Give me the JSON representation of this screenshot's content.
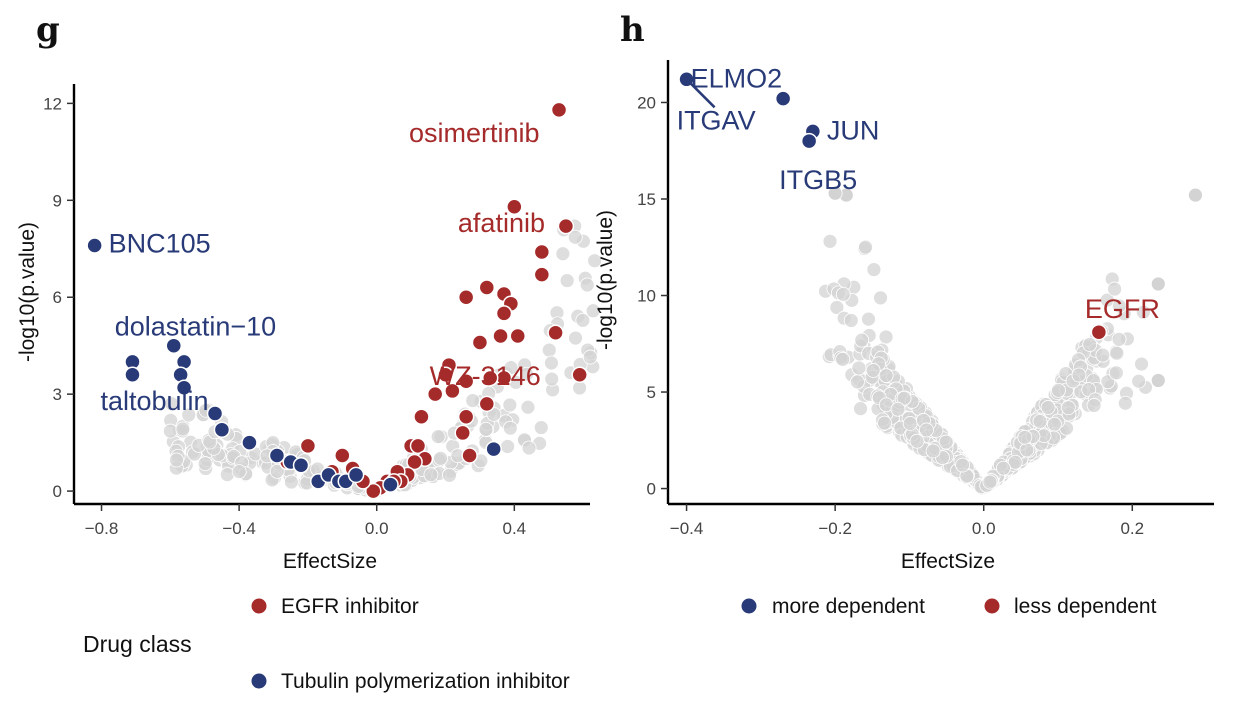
{
  "panels": {
    "g": "g",
    "h": "h"
  },
  "legend_g": {
    "title": "Drug class",
    "items": [
      {
        "label": "EGFR inhibitor",
        "color": "#a52a2a"
      },
      {
        "label": "Tubulin polymerization inhibitor",
        "color": "#283a77"
      }
    ]
  },
  "legend_h": {
    "items": [
      {
        "label": "more dependent",
        "color": "#283a77"
      },
      {
        "label": "less dependent",
        "color": "#a52a2a"
      }
    ]
  },
  "colors": {
    "red": "#a52a2a",
    "blue": "#283a77",
    "grey": "#d3d3d3"
  },
  "chart_data": [
    {
      "type": "scatter",
      "xlabel": "EffectSize",
      "ylabel": "-log10(p.value)",
      "xlim": [
        -0.88,
        0.62
      ],
      "ylim": [
        -0.4,
        12.6
      ],
      "xticks": [
        -0.8,
        -0.4,
        0.0,
        0.4
      ],
      "xtick_labels": [
        "−0.8",
        "−0.4",
        "0.0",
        "0.4"
      ],
      "yticks": [
        0,
        3,
        6,
        9,
        12
      ],
      "grid": false,
      "legend": "bottom",
      "series": [
        {
          "name": "EGFR inhibitor",
          "color": "#a52a2a",
          "points": [
            [
              0.53,
              11.8
            ],
            [
              0.4,
              8.8
            ],
            [
              0.55,
              8.2
            ],
            [
              0.48,
              7.4
            ],
            [
              0.48,
              6.7
            ],
            [
              0.32,
              6.3
            ],
            [
              0.37,
              6.1
            ],
            [
              0.26,
              6.0
            ],
            [
              0.39,
              5.8
            ],
            [
              0.37,
              5.5
            ],
            [
              0.52,
              4.9
            ],
            [
              0.41,
              4.8
            ],
            [
              0.36,
              4.8
            ],
            [
              0.3,
              4.6
            ],
            [
              0.21,
              3.9
            ],
            [
              0.2,
              3.6
            ],
            [
              0.37,
              3.5
            ],
            [
              0.26,
              3.4
            ],
            [
              0.33,
              3.5
            ],
            [
              0.59,
              3.6
            ],
            [
              0.17,
              3.0
            ],
            [
              0.22,
              3.1
            ],
            [
              0.32,
              2.7
            ],
            [
              0.13,
              2.3
            ],
            [
              0.26,
              2.3
            ],
            [
              0.25,
              1.8
            ],
            [
              0.1,
              1.4
            ],
            [
              0.12,
              1.4
            ],
            [
              0.27,
              1.1
            ],
            [
              0.14,
              1.0
            ],
            [
              0.11,
              0.9
            ],
            [
              0.09,
              0.5
            ],
            [
              0.06,
              0.6
            ],
            [
              0.03,
              0.3
            ],
            [
              -0.2,
              1.4
            ],
            [
              -0.22,
              0.8
            ],
            [
              -0.26,
              0.9
            ],
            [
              -0.1,
              1.1
            ],
            [
              -0.07,
              0.7
            ],
            [
              -0.13,
              0.6
            ],
            [
              0.01,
              0.1
            ],
            [
              -0.01,
              0.0
            ],
            [
              -0.04,
              0.3
            ],
            [
              0.07,
              0.3
            ],
            [
              0.05,
              0.3
            ]
          ],
          "labels": [
            {
              "text": "osimertinib",
              "x": 0.53,
              "y": 11.8
            },
            {
              "text": "afatinib",
              "x": 0.55,
              "y": 8.2
            },
            {
              "text": "WZ-3146",
              "x": 0.59,
              "y": 3.6
            }
          ]
        },
        {
          "name": "Tubulin polymerization inhibitor",
          "color": "#283a77",
          "points": [
            [
              -0.82,
              7.6
            ],
            [
              -0.71,
              4.0
            ],
            [
              -0.71,
              3.6
            ],
            [
              -0.59,
              4.5
            ],
            [
              -0.56,
              4.0
            ],
            [
              -0.57,
              3.6
            ],
            [
              -0.56,
              3.2
            ],
            [
              -0.47,
              2.4
            ],
            [
              -0.45,
              1.9
            ],
            [
              -0.37,
              1.5
            ],
            [
              -0.29,
              1.1
            ],
            [
              -0.25,
              0.9
            ],
            [
              -0.22,
              0.8
            ],
            [
              -0.17,
              0.3
            ],
            [
              -0.14,
              0.5
            ],
            [
              -0.11,
              0.3
            ],
            [
              -0.09,
              0.3
            ],
            [
              -0.06,
              0.5
            ],
            [
              0.04,
              0.2
            ],
            [
              0.34,
              1.3
            ]
          ],
          "labels": [
            {
              "text": "BNC105",
              "x": -0.82,
              "y": 7.6
            },
            {
              "text": "dolastatin−10",
              "x": -0.59,
              "y": 4.5
            },
            {
              "text": "taltobulin",
              "x": -0.71,
              "y": 3.6
            }
          ]
        }
      ]
    },
    {
      "type": "scatter",
      "xlabel": "EffectSize",
      "ylabel": "-log10(p.value)",
      "xlim": [
        -0.425,
        0.31
      ],
      "ylim": [
        -0.8,
        22.2
      ],
      "xticks": [
        -0.4,
        -0.2,
        0.0,
        0.2
      ],
      "xtick_labels": [
        "−0.4",
        "−0.2",
        "0.0",
        "0.2"
      ],
      "yticks": [
        0,
        5,
        10,
        15,
        20
      ],
      "grid": false,
      "legend": "bottom",
      "series": [
        {
          "name": "more dependent",
          "color": "#283a77",
          "points": [
            [
              -0.4,
              21.2
            ],
            [
              -0.27,
              20.2
            ],
            [
              -0.23,
              18.5
            ],
            [
              -0.235,
              18.0
            ]
          ],
          "labels": [
            {
              "text": "ELMO2",
              "x": -0.4,
              "y": 21.2
            },
            {
              "text": "ITGAV",
              "x": -0.4,
              "y": 21.2
            },
            {
              "text": "JUN",
              "x": -0.23,
              "y": 18.5
            },
            {
              "text": "ITGB5",
              "x": -0.235,
              "y": 18.0
            }
          ]
        },
        {
          "name": "less dependent",
          "color": "#a52a2a",
          "points": [
            [
              0.155,
              8.1
            ]
          ],
          "labels": [
            {
              "text": "EGFR",
              "x": 0.155,
              "y": 8.1
            }
          ]
        }
      ]
    }
  ]
}
